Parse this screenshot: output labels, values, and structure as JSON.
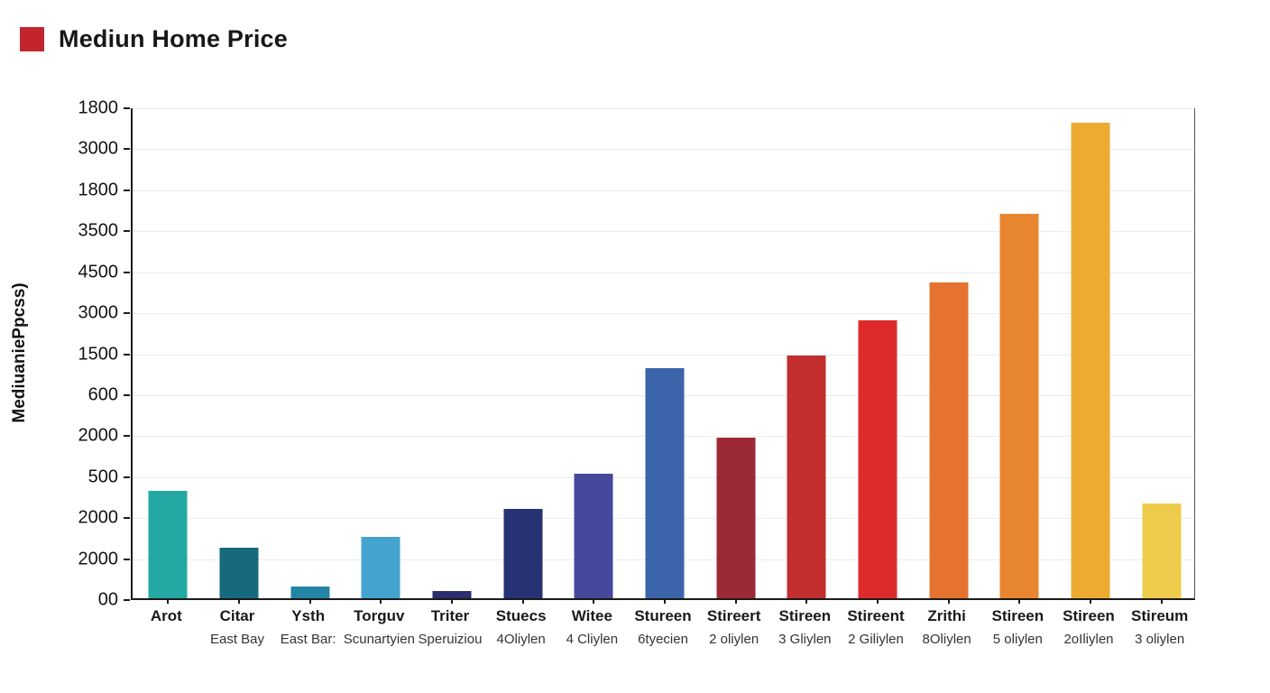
{
  "header": {
    "title": "Mediun Home Price",
    "legend_color": "#c2262c"
  },
  "chart_data": {
    "type": "bar",
    "title": "Mediun Home Price",
    "xlabel": "",
    "ylabel": "MediuaniePpcss)",
    "ylim": [
      0,
      545
    ],
    "grid": true,
    "legend_position": "top-left",
    "y_ticks": [
      "1800",
      "3000",
      "1800",
      "3500",
      "4500",
      "3000",
      "1500",
      "600",
      "2000",
      "500",
      "2000",
      "2000",
      "00"
    ],
    "categories": [
      {
        "label": "Arot",
        "sublabel": ""
      },
      {
        "label": "Citar",
        "sublabel": "East Bay"
      },
      {
        "label": "Ysth",
        "sublabel": "East Bar:"
      },
      {
        "label": "Torguv",
        "sublabel": "Scunartyien"
      },
      {
        "label": "Triter",
        "sublabel": "Speruiziou"
      },
      {
        "label": "Stuecs",
        "sublabel": "4Oliylen"
      },
      {
        "label": "Witee",
        "sublabel": "4 Cliylen"
      },
      {
        "label": "Stureen",
        "sublabel": "6tyecien"
      },
      {
        "label": "Stireert",
        "sublabel": "2 oliylen"
      },
      {
        "label": "Stireen",
        "sublabel": "3 Gliylen"
      },
      {
        "label": "Stireent",
        "sublabel": "2 Giliylen"
      },
      {
        "label": "Zrithi",
        "sublabel": "8Oliylen"
      },
      {
        "label": "Stireen",
        "sublabel": "5 oliylen"
      },
      {
        "label": "Stireen",
        "sublabel": "2oIliylen"
      },
      {
        "label": "Stireum",
        "sublabel": "3 oliylen"
      }
    ],
    "values": [
      119,
      56,
      13,
      68,
      8,
      99,
      138,
      255,
      178,
      269,
      308,
      350,
      426,
      527,
      105
    ],
    "colors": [
      "#23a8a3",
      "#17697d",
      "#2384a6",
      "#44a3cf",
      "#2b2f6d",
      "#263273",
      "#45499c",
      "#3c64ab",
      "#9c2936",
      "#c32e2e",
      "#dd2b2b",
      "#e5732f",
      "#e8862f",
      "#edab31",
      "#eecb4a"
    ]
  }
}
